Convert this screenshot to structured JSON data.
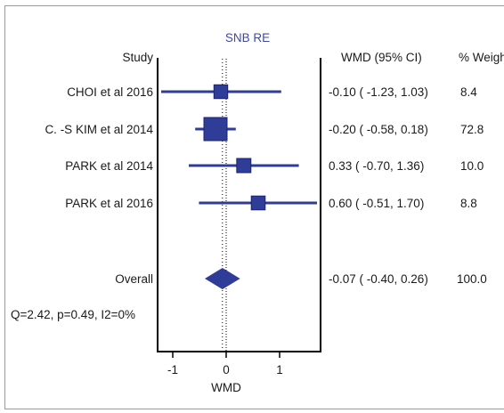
{
  "chart_data": {
    "type": "forest",
    "title": "SNB RE",
    "xlabel": "WMD",
    "xlim": [
      -1.3,
      1.75
    ],
    "xticks": [
      -1,
      0,
      1
    ],
    "xtick_labels": [
      "-1",
      "0",
      "1"
    ],
    "column_headers": {
      "study": "Study",
      "effect": "WMD (95% CI)",
      "weight": "% Weigh"
    },
    "studies": [
      {
        "name": "CHOI et al 2016",
        "wmd": -0.1,
        "lo": -1.23,
        "hi": 1.03,
        "weight": 8.4,
        "ci_text": "-0.10 ( -1.23, 1.03)",
        "weight_text": "8.4"
      },
      {
        "name": "C. -S KIM et al 2014",
        "wmd": -0.2,
        "lo": -0.58,
        "hi": 0.18,
        "weight": 72.8,
        "ci_text": "-0.20 ( -0.58, 0.18)",
        "weight_text": "72.8"
      },
      {
        "name": "PARK et al 2014",
        "wmd": 0.33,
        "lo": -0.7,
        "hi": 1.36,
        "weight": 10.0,
        "ci_text": "0.33 ( -0.70, 1.36)",
        "weight_text": "10.0"
      },
      {
        "name": "PARK et al 2016",
        "wmd": 0.6,
        "lo": -0.51,
        "hi": 1.7,
        "weight": 8.8,
        "ci_text": "0.60 ( -0.51, 1.70)",
        "weight_text": "8.8"
      }
    ],
    "overall": {
      "name": "Overall",
      "wmd": -0.07,
      "lo": -0.4,
      "hi": 0.26,
      "weight": 100.0,
      "ci_text": "-0.07 ( -0.40, 0.26)",
      "weight_text": "100.0"
    },
    "heterogeneity": "Q=2.42, p=0.49, I2=0%",
    "colors": {
      "marker": "#2f3d98",
      "line": "#2f3d98",
      "axis": "#000000",
      "title": "#3f4aa6"
    }
  }
}
